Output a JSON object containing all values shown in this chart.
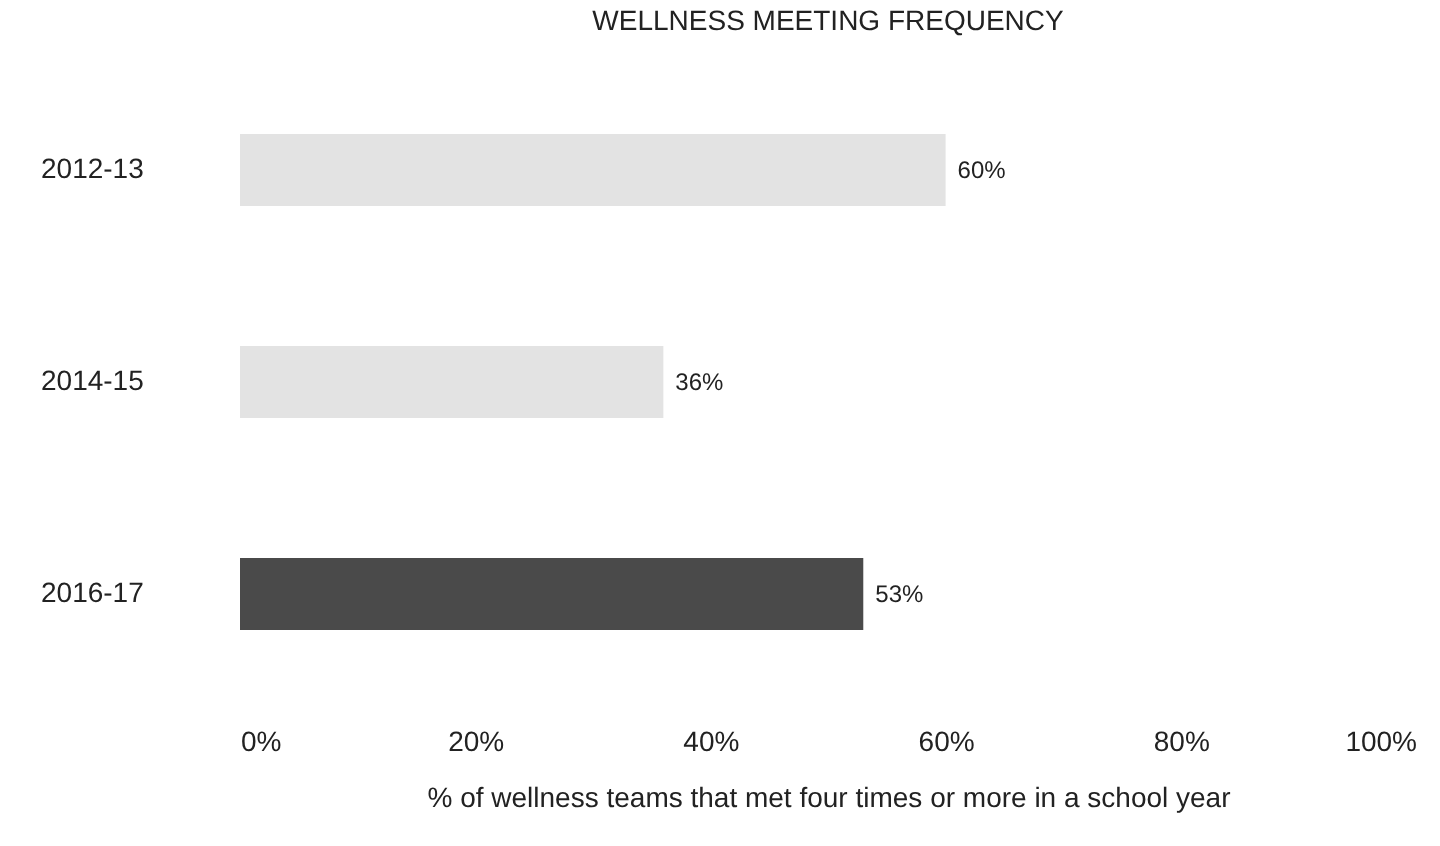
{
  "chart_data": {
    "type": "bar",
    "orientation": "horizontal",
    "title": "WELLNESS MEETING FREQUENCY",
    "xlabel": "% of wellness teams that met four times or more in a school year",
    "categories": [
      "2012-13",
      "2014-15",
      "2016-17"
    ],
    "values": [
      60,
      36,
      53
    ],
    "colors": [
      "#e3e3e3",
      "#e3e3e3",
      "#4a4a4a"
    ],
    "value_labels": [
      "60%",
      "36%",
      "53%"
    ],
    "xlim": [
      0,
      100
    ],
    "xticks": [
      {
        "value": 0,
        "label": "0%"
      },
      {
        "value": 20,
        "label": "20%"
      },
      {
        "value": 40,
        "label": "40%"
      },
      {
        "value": 60,
        "label": "60%"
      },
      {
        "value": 80,
        "label": "80%"
      },
      {
        "value": 100,
        "label": "100%"
      }
    ],
    "grid": false,
    "legend": false
  }
}
